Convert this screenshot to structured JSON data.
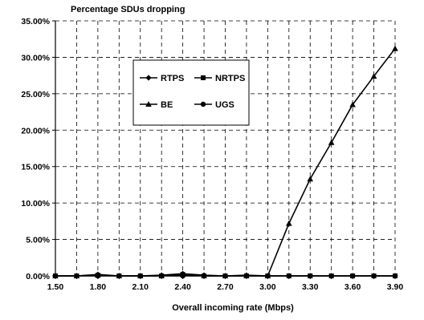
{
  "chart_data": {
    "type": "line",
    "title": "Percentage SDUs dropping",
    "xlabel": "Overall incoming rate (Mbps)",
    "ylabel": "",
    "x": [
      1.5,
      1.65,
      1.8,
      1.95,
      2.1,
      2.25,
      2.4,
      2.55,
      2.7,
      2.85,
      3.0,
      3.15,
      3.3,
      3.45,
      3.6,
      3.75,
      3.9
    ],
    "x_ticks": [
      "1.50",
      "1.80",
      "2.10",
      "2.40",
      "2.70",
      "3.00",
      "3.30",
      "3.60",
      "3.90"
    ],
    "x_tick_values": [
      1.5,
      1.8,
      2.1,
      2.4,
      2.7,
      3.0,
      3.3,
      3.6,
      3.9
    ],
    "xlim": [
      1.5,
      3.9
    ],
    "y_ticks": [
      "0.00%",
      "5.00%",
      "10.00%",
      "15.00%",
      "20.00%",
      "25.00%",
      "30.00%",
      "35.00%"
    ],
    "y_tick_values": [
      0,
      5,
      10,
      15,
      20,
      25,
      30,
      35
    ],
    "ylim": [
      0,
      35
    ],
    "y_unit": "percent",
    "grid": "dashed",
    "legend_position": "upper-left-inside",
    "series": [
      {
        "name": "RTPS",
        "marker": "diamond",
        "values": [
          0,
          0,
          0.2,
          0,
          0,
          0.1,
          0.3,
          0.1,
          0,
          0.1,
          0,
          0,
          0,
          0,
          0,
          0,
          0
        ]
      },
      {
        "name": "NRTPS",
        "marker": "square",
        "values": [
          0,
          0,
          0.1,
          0,
          0,
          0,
          0.2,
          0,
          0,
          0,
          0,
          0,
          0,
          0,
          0,
          0,
          0
        ]
      },
      {
        "name": "BE",
        "marker": "triangle",
        "values": [
          0,
          0,
          0.1,
          0,
          0,
          0,
          0.2,
          0,
          0,
          0,
          0,
          7.2,
          13.3,
          18.3,
          23.5,
          27.4,
          31.2
        ]
      },
      {
        "name": "UGS",
        "marker": "circle",
        "values": [
          0,
          0,
          0,
          0,
          0,
          0,
          0,
          0,
          0,
          0,
          0,
          0,
          0,
          0,
          0,
          0,
          0
        ]
      }
    ]
  }
}
